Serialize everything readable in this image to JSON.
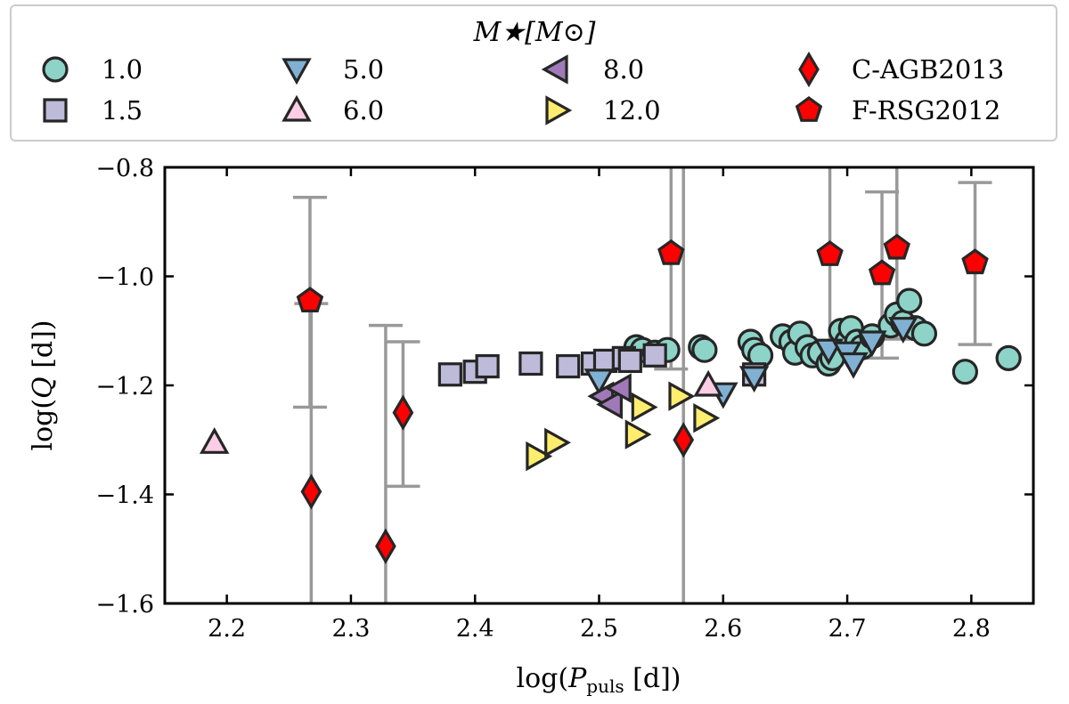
{
  "chart_data": {
    "type": "scatter",
    "xlabel": "log(P_puls [d])",
    "xlabel_parts": {
      "pre": "log(",
      "sym": "P",
      "sub": "puls",
      "post": " [d])"
    },
    "ylabel": "log(Q [d])",
    "ylabel_parts": {
      "pre": "log(",
      "sym": "Q",
      "post": " [d])"
    },
    "xlim": [
      2.15,
      2.85
    ],
    "ylim": [
      -1.6,
      -0.8
    ],
    "xticks": [
      2.2,
      2.3,
      2.4,
      2.5,
      2.6,
      2.7,
      2.8
    ],
    "yticks": [
      -1.6,
      -1.4,
      -1.2,
      -1.0,
      -0.8
    ],
    "xtick_labels": [
      "2.2",
      "2.3",
      "2.4",
      "2.5",
      "2.6",
      "2.7",
      "2.8"
    ],
    "ytick_labels": [
      "−1.6",
      "−1.4",
      "−1.2",
      "−1.0",
      "−0.8"
    ],
    "legend": {
      "title": "M★[M⊙]",
      "position": "top (above axes)",
      "entries": [
        "1.0",
        "1.5",
        "5.0",
        "6.0",
        "8.0",
        "12.0",
        "C-AGB2013",
        "F-RSG2012"
      ]
    },
    "series": [
      {
        "name": "1.0",
        "marker": "circle",
        "color": "#8dd3c7",
        "points": [
          [
            2.53,
            -1.13
          ],
          [
            2.535,
            -1.135
          ],
          [
            2.545,
            -1.14
          ],
          [
            2.555,
            -1.135
          ],
          [
            2.582,
            -1.13
          ],
          [
            2.585,
            -1.135
          ],
          [
            2.622,
            -1.12
          ],
          [
            2.625,
            -1.135
          ],
          [
            2.63,
            -1.145
          ],
          [
            2.648,
            -1.11
          ],
          [
            2.655,
            -1.12
          ],
          [
            2.658,
            -1.14
          ],
          [
            2.662,
            -1.105
          ],
          [
            2.668,
            -1.13
          ],
          [
            2.672,
            -1.145
          ],
          [
            2.678,
            -1.14
          ],
          [
            2.685,
            -1.16
          ],
          [
            2.688,
            -1.15
          ],
          [
            2.695,
            -1.1
          ],
          [
            2.7,
            -1.12
          ],
          [
            2.703,
            -1.095
          ],
          [
            2.708,
            -1.12
          ],
          [
            2.712,
            -1.13
          ],
          [
            2.72,
            -1.11
          ],
          [
            2.735,
            -1.09
          ],
          [
            2.74,
            -1.07
          ],
          [
            2.745,
            -1.085
          ],
          [
            2.75,
            -1.045
          ],
          [
            2.755,
            -1.095
          ],
          [
            2.762,
            -1.105
          ],
          [
            2.795,
            -1.175
          ],
          [
            2.83,
            -1.15
          ]
        ]
      },
      {
        "name": "1.5",
        "marker": "square",
        "color": "#bebada",
        "points": [
          [
            2.38,
            -1.18
          ],
          [
            2.4,
            -1.175
          ],
          [
            2.41,
            -1.165
          ],
          [
            2.445,
            -1.16
          ],
          [
            2.475,
            -1.165
          ],
          [
            2.495,
            -1.16
          ],
          [
            2.505,
            -1.155
          ],
          [
            2.52,
            -1.15
          ],
          [
            2.525,
            -1.155
          ],
          [
            2.545,
            -1.145
          ],
          [
            2.625,
            -1.18
          ]
        ]
      },
      {
        "name": "5.0",
        "marker": "triangle-down",
        "color": "#80b1d3",
        "points": [
          [
            2.5,
            -1.19
          ],
          [
            2.6,
            -1.215
          ],
          [
            2.625,
            -1.185
          ],
          [
            2.685,
            -1.135
          ],
          [
            2.7,
            -1.14
          ],
          [
            2.705,
            -1.16
          ],
          [
            2.72,
            -1.12
          ],
          [
            2.745,
            -1.095
          ]
        ]
      },
      {
        "name": "6.0",
        "marker": "triangle-up",
        "color": "#fccde5",
        "points": [
          [
            2.19,
            -1.305
          ],
          [
            2.588,
            -1.2
          ]
        ]
      },
      {
        "name": "8.0",
        "marker": "triangle-left",
        "color": "#a07ab8",
        "points": [
          [
            2.503,
            -1.22
          ],
          [
            2.51,
            -1.235
          ],
          [
            2.517,
            -1.205
          ]
        ]
      },
      {
        "name": "12.0",
        "marker": "triangle-right",
        "color": "#ffed6f",
        "points": [
          [
            2.45,
            -1.33
          ],
          [
            2.465,
            -1.305
          ],
          [
            2.53,
            -1.29
          ],
          [
            2.535,
            -1.24
          ],
          [
            2.565,
            -1.22
          ],
          [
            2.585,
            -1.26
          ]
        ]
      },
      {
        "name": "C-AGB2013",
        "marker": "diamond",
        "color": "#ff0000",
        "points": [
          [
            2.268,
            -1.395
          ],
          [
            2.328,
            -1.495
          ],
          [
            2.342,
            -1.25
          ],
          [
            2.568,
            -1.3
          ]
        ],
        "errors": [
          [
            -1.6,
            -1.05
          ],
          [
            -1.6,
            -1.09
          ],
          [
            -1.385,
            -1.12
          ],
          [
            -1.6,
            -0.8
          ]
        ]
      },
      {
        "name": "F-RSG2012",
        "marker": "pentagon",
        "color": "#ff0000",
        "points": [
          [
            2.267,
            -1.045
          ],
          [
            2.558,
            -0.958
          ],
          [
            2.686,
            -0.96
          ],
          [
            2.728,
            -0.995
          ],
          [
            2.74,
            -0.948
          ],
          [
            2.803,
            -0.975
          ]
        ],
        "errors": [
          [
            -1.24,
            -0.855
          ],
          [
            -1.17,
            -0.8
          ],
          [
            -1.15,
            -0.8
          ],
          [
            -1.15,
            -0.845
          ],
          [
            -1.115,
            -0.8
          ],
          [
            -1.125,
            -0.828
          ]
        ]
      }
    ]
  }
}
